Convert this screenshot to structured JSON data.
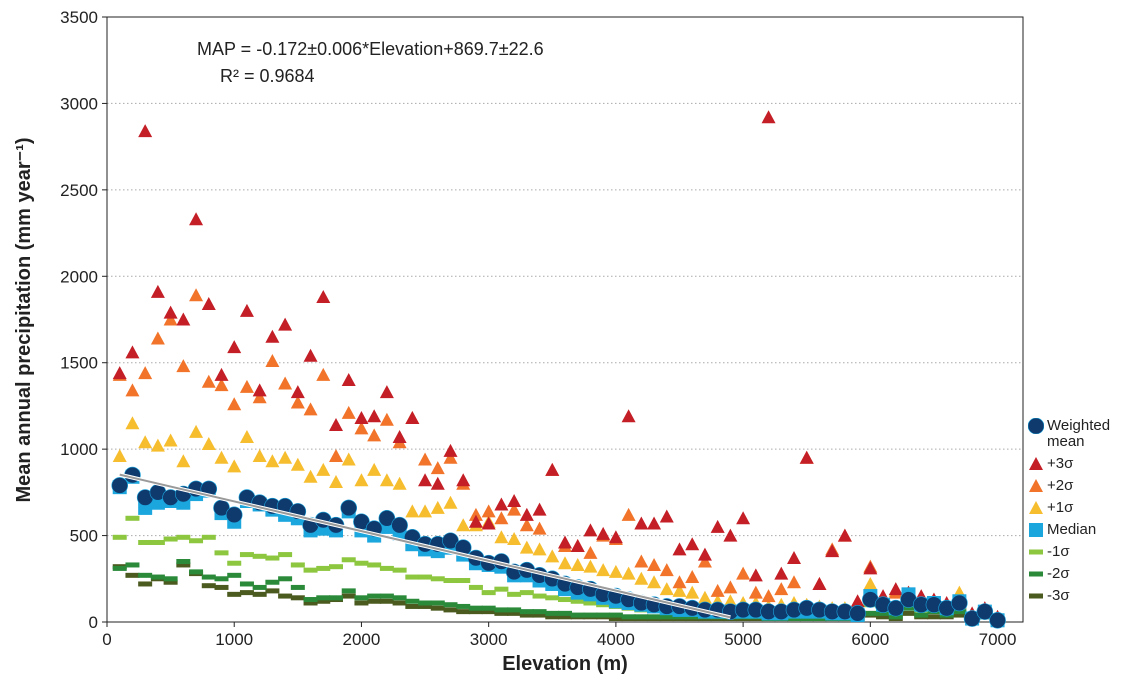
{
  "chart_data": {
    "type": "scatter",
    "xlabel": "Elevation (m)",
    "ylabel": "Mean annual precipitation (mm year⁻¹)",
    "annotations": [
      "MAP = -0.172±0.006*Elevation+869.7±22.6",
      "R² = 0.9684"
    ],
    "xlim": [
      0,
      7200
    ],
    "ylim": [
      0,
      3500
    ],
    "xticks": [
      0,
      1000,
      2000,
      3000,
      4000,
      5000,
      6000,
      7000
    ],
    "yticks": [
      0,
      500,
      1000,
      1500,
      2000,
      2500,
      3000,
      3500
    ],
    "grid": true,
    "legend": "right",
    "x": [
      100,
      200,
      300,
      400,
      500,
      600,
      700,
      800,
      900,
      1000,
      1100,
      1200,
      1300,
      1400,
      1500,
      1600,
      1700,
      1800,
      1900,
      2000,
      2100,
      2200,
      2300,
      2400,
      2500,
      2600,
      2700,
      2800,
      2900,
      3000,
      3100,
      3200,
      3300,
      3400,
      3500,
      3600,
      3700,
      3800,
      3900,
      4000,
      4100,
      4200,
      4300,
      4400,
      4500,
      4600,
      4700,
      4800,
      4900,
      5000,
      5100,
      5200,
      5300,
      5400,
      5500,
      5600,
      5700,
      5800,
      5900,
      6000,
      6100,
      6200,
      6300,
      6400,
      6500,
      6600,
      6700,
      6800,
      6900,
      7000
    ],
    "trend": {
      "color": "#9a9a9a",
      "x": [
        100,
        4900
      ],
      "values": [
        852.5,
        26.9
      ]
    },
    "series": [
      {
        "name": "Weighted mean",
        "marker": "circle",
        "color": "#0e3a6e",
        "values": [
          790,
          850,
          720,
          750,
          720,
          740,
          770,
          770,
          660,
          620,
          720,
          690,
          670,
          670,
          640,
          560,
          590,
          560,
          660,
          580,
          540,
          600,
          560,
          490,
          450,
          450,
          470,
          430,
          370,
          340,
          350,
          290,
          300,
          270,
          250,
          220,
          200,
          190,
          160,
          150,
          130,
          110,
          100,
          90,
          90,
          80,
          70,
          70,
          60,
          70,
          70,
          60,
          60,
          70,
          80,
          70,
          60,
          60,
          50,
          130,
          100,
          80,
          130,
          100,
          100,
          80,
          110,
          20,
          60,
          10
        ]
      },
      {
        "name": "+3σ",
        "marker": "triangle",
        "color": "#c41e26",
        "values": [
          1440,
          1560,
          2840,
          1910,
          1790,
          1750,
          2330,
          1840,
          1430,
          1590,
          1800,
          1340,
          1650,
          1720,
          1330,
          1540,
          1880,
          1140,
          1400,
          1180,
          1190,
          1330,
          1070,
          1180,
          820,
          800,
          990,
          820,
          580,
          570,
          680,
          700,
          620,
          650,
          880,
          460,
          440,
          530,
          510,
          490,
          1190,
          570,
          570,
          610,
          420,
          450,
          390,
          550,
          500,
          600,
          270,
          2920,
          280,
          370,
          950,
          220,
          410,
          500,
          120,
          310,
          150,
          190,
          170,
          150,
          130,
          110,
          120,
          50,
          80,
          30
        ]
      },
      {
        "name": "+2σ",
        "marker": "triangle",
        "color": "#f2742a",
        "values": [
          1430,
          1340,
          1440,
          1640,
          1750,
          1480,
          1890,
          1390,
          1370,
          1260,
          1360,
          1300,
          1510,
          1380,
          1270,
          1230,
          1430,
          960,
          1210,
          1120,
          1080,
          1170,
          1040,
          1180,
          940,
          890,
          950,
          800,
          620,
          640,
          600,
          650,
          560,
          540,
          880,
          440,
          440,
          400,
          500,
          480,
          620,
          350,
          330,
          300,
          230,
          260,
          350,
          180,
          200,
          280,
          170,
          150,
          190,
          230,
          950,
          220,
          420,
          500,
          100,
          320,
          120,
          170,
          140,
          130,
          120,
          100,
          110,
          40,
          70,
          30
        ]
      },
      {
        "name": "+1σ",
        "marker": "triangle",
        "color": "#f6bd2e",
        "values": [
          960,
          1150,
          1040,
          1020,
          1050,
          930,
          1100,
          1030,
          950,
          900,
          1070,
          960,
          930,
          950,
          910,
          840,
          880,
          810,
          940,
          820,
          880,
          820,
          800,
          640,
          640,
          660,
          690,
          560,
          560,
          580,
          490,
          480,
          430,
          420,
          380,
          340,
          330,
          320,
          300,
          290,
          280,
          250,
          230,
          190,
          180,
          170,
          140,
          120,
          120,
          110,
          110,
          90,
          100,
          110,
          100,
          90,
          80,
          80,
          60,
          220,
          140,
          180,
          170,
          140,
          120,
          90,
          170,
          30,
          70,
          20
        ]
      },
      {
        "name": "Median",
        "marker": "square",
        "color": "#1ba6de",
        "values": [
          780,
          840,
          660,
          690,
          700,
          690,
          740,
          760,
          630,
          580,
          700,
          680,
          650,
          620,
          600,
          530,
          540,
          530,
          640,
          530,
          500,
          550,
          510,
          450,
          420,
          410,
          430,
          390,
          340,
          330,
          320,
          270,
          270,
          240,
          220,
          190,
          170,
          160,
          140,
          120,
          110,
          100,
          90,
          80,
          70,
          70,
          60,
          60,
          60,
          60,
          60,
          50,
          50,
          60,
          60,
          60,
          50,
          50,
          40,
          150,
          100,
          80,
          160,
          100,
          110,
          80,
          120,
          20,
          60,
          10
        ]
      },
      {
        "name": "-1σ",
        "marker": "dash",
        "color": "#8dc63f",
        "values": [
          490,
          600,
          460,
          460,
          480,
          490,
          470,
          490,
          400,
          340,
          390,
          380,
          370,
          390,
          330,
          300,
          310,
          320,
          360,
          340,
          330,
          310,
          300,
          260,
          260,
          250,
          240,
          240,
          200,
          170,
          190,
          160,
          170,
          150,
          140,
          130,
          120,
          110,
          100,
          90,
          80,
          70,
          70,
          60,
          60,
          50,
          50,
          50,
          50,
          50,
          50,
          40,
          40,
          40,
          40,
          40,
          40,
          40,
          30,
          100,
          80,
          60,
          120,
          70,
          90,
          60,
          90,
          10,
          50,
          10
        ]
      },
      {
        "name": "-2σ",
        "marker": "dash",
        "color": "#2a8a3a",
        "values": [
          310,
          330,
          270,
          260,
          250,
          350,
          290,
          260,
          250,
          270,
          220,
          200,
          230,
          250,
          200,
          130,
          140,
          140,
          180,
          140,
          150,
          150,
          140,
          120,
          110,
          110,
          100,
          90,
          80,
          80,
          70,
          70,
          60,
          60,
          50,
          50,
          40,
          40,
          40,
          40,
          30,
          30,
          30,
          30,
          30,
          30,
          30,
          30,
          30,
          30,
          30,
          20,
          20,
          20,
          20,
          20,
          20,
          20,
          20,
          50,
          50,
          30,
          80,
          40,
          60,
          40,
          60,
          10,
          40,
          10
        ]
      },
      {
        "name": "-3σ",
        "marker": "dash",
        "color": "#4b5a1e",
        "values": [
          320,
          270,
          220,
          250,
          230,
          330,
          280,
          210,
          200,
          160,
          170,
          160,
          180,
          150,
          140,
          110,
          120,
          130,
          150,
          110,
          120,
          120,
          110,
          90,
          90,
          80,
          70,
          60,
          60,
          60,
          50,
          50,
          40,
          40,
          30,
          30,
          30,
          30,
          30,
          20,
          20,
          20,
          20,
          20,
          20,
          20,
          20,
          20,
          20,
          20,
          20,
          20,
          20,
          20,
          20,
          20,
          20,
          20,
          20,
          40,
          30,
          20,
          50,
          30,
          30,
          30,
          40,
          10,
          30,
          10
        ]
      }
    ]
  }
}
